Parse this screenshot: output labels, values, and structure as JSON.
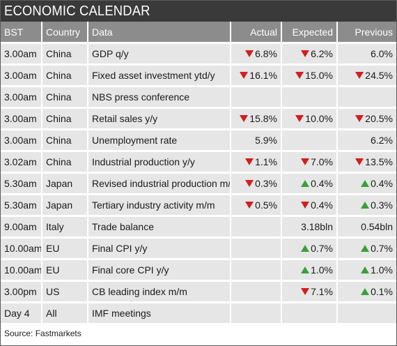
{
  "title": "ECONOMIC CALENDAR",
  "colors": {
    "header_bg": "#8c8c8c",
    "title_bg": "#3a3a3a",
    "row_bg": "#e6e6e6",
    "down": "#d21f1f",
    "up": "#3aa03a"
  },
  "columns": [
    "BST",
    "Country",
    "Data",
    "Actual",
    "Expected",
    "Previous"
  ],
  "rows": [
    {
      "time": "3.00am",
      "country": "China",
      "data": "GDP q/y",
      "actual": {
        "dir": "down",
        "value": "6.8%"
      },
      "expected": {
        "dir": "down",
        "value": "6.2%"
      },
      "previous": {
        "dir": "",
        "value": "6.0%"
      }
    },
    {
      "time": "3.00am",
      "country": "China",
      "data": "Fixed asset investment ytd/y",
      "actual": {
        "dir": "down",
        "value": "16.1%"
      },
      "expected": {
        "dir": "down",
        "value": "15.0%"
      },
      "previous": {
        "dir": "down",
        "value": "24.5%"
      }
    },
    {
      "time": "3.00am",
      "country": "China",
      "data": "NBS press conference",
      "actual": {
        "dir": "",
        "value": ""
      },
      "expected": {
        "dir": "",
        "value": ""
      },
      "previous": {
        "dir": "",
        "value": ""
      }
    },
    {
      "time": "3.00am",
      "country": "China",
      "data": "Retail sales y/y",
      "actual": {
        "dir": "down",
        "value": "15.8%"
      },
      "expected": {
        "dir": "down",
        "value": "10.0%"
      },
      "previous": {
        "dir": "down",
        "value": "20.5%"
      }
    },
    {
      "time": "3.00am",
      "country": "China",
      "data": "Unemployment rate",
      "actual": {
        "dir": "",
        "value": "5.9%"
      },
      "expected": {
        "dir": "",
        "value": ""
      },
      "previous": {
        "dir": "",
        "value": "6.2%"
      }
    },
    {
      "time": "3.02am",
      "country": "China",
      "data": "Industrial production y/y",
      "actual": {
        "dir": "down",
        "value": "1.1%"
      },
      "expected": {
        "dir": "down",
        "value": "7.0%"
      },
      "previous": {
        "dir": "down",
        "value": "13.5%"
      }
    },
    {
      "time": "5.30am",
      "country": "Japan",
      "data": "Revised industrial production m/m",
      "actual": {
        "dir": "down",
        "value": "0.3%"
      },
      "expected": {
        "dir": "up",
        "value": "0.4%"
      },
      "previous": {
        "dir": "up",
        "value": "0.4%"
      }
    },
    {
      "time": "5.30am",
      "country": "Japan",
      "data": "Tertiary industry activity m/m",
      "actual": {
        "dir": "down",
        "value": "0.5%"
      },
      "expected": {
        "dir": "down",
        "value": "0.4%"
      },
      "previous": {
        "dir": "up",
        "value": "0.3%"
      }
    },
    {
      "time": "9.00am",
      "country": "Italy",
      "data": "Trade balance",
      "actual": {
        "dir": "",
        "value": ""
      },
      "expected": {
        "dir": "",
        "value": "3.18bln"
      },
      "previous": {
        "dir": "",
        "value": "0.54bln"
      }
    },
    {
      "time": "10.00am",
      "country": "EU",
      "data": "Final CPI y/y",
      "actual": {
        "dir": "",
        "value": ""
      },
      "expected": {
        "dir": "up",
        "value": "0.7%"
      },
      "previous": {
        "dir": "up",
        "value": "0.7%"
      }
    },
    {
      "time": "10.00am",
      "country": "EU",
      "data": "Final core CPI y/y",
      "actual": {
        "dir": "",
        "value": ""
      },
      "expected": {
        "dir": "up",
        "value": "1.0%"
      },
      "previous": {
        "dir": "up",
        "value": "1.0%"
      }
    },
    {
      "time": "3.00pm",
      "country": "US",
      "data": "CB leading index m/m",
      "actual": {
        "dir": "",
        "value": ""
      },
      "expected": {
        "dir": "down",
        "value": "7.1%"
      },
      "previous": {
        "dir": "up",
        "value": "0.1%"
      }
    },
    {
      "time": "Day 4",
      "country": "All",
      "data": "IMF meetings",
      "actual": {
        "dir": "",
        "value": ""
      },
      "expected": {
        "dir": "",
        "value": ""
      },
      "previous": {
        "dir": "",
        "value": ""
      }
    }
  ],
  "source": "Source: Fastmarkets"
}
